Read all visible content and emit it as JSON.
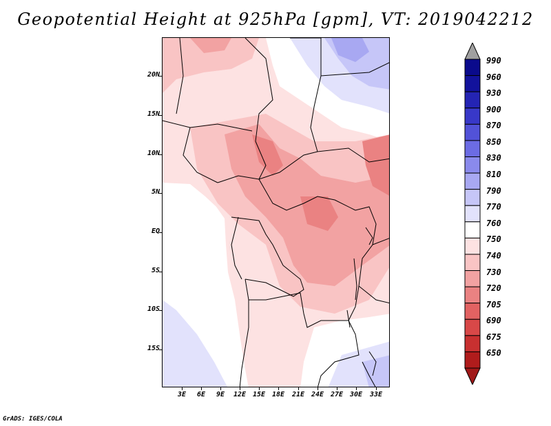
{
  "title": "Geopotential Height at 925hPa [gpm], VT: 2019042212",
  "credit": "GrADS: IGES/COLA",
  "map": {
    "variable": "Geopotential Height",
    "level": "925hPa",
    "units": "gpm",
    "valid_time": "2019042212",
    "lat_ticks": [
      {
        "value": 20,
        "label": "20N"
      },
      {
        "value": 15,
        "label": "15N"
      },
      {
        "value": 10,
        "label": "10N"
      },
      {
        "value": 5,
        "label": "5N"
      },
      {
        "value": 0,
        "label": "EQ"
      },
      {
        "value": -5,
        "label": "5S"
      },
      {
        "value": -10,
        "label": "10S"
      },
      {
        "value": -15,
        "label": "15S"
      }
    ],
    "lon_ticks": [
      {
        "value": 3,
        "label": "3E"
      },
      {
        "value": 6,
        "label": "6E"
      },
      {
        "value": 9,
        "label": "9E"
      },
      {
        "value": 12,
        "label": "12E"
      },
      {
        "value": 15,
        "label": "15E"
      },
      {
        "value": 18,
        "label": "18E"
      },
      {
        "value": 21,
        "label": "21E"
      },
      {
        "value": 24,
        "label": "24E"
      },
      {
        "value": 27,
        "label": "27E"
      },
      {
        "value": 30,
        "label": "30E"
      },
      {
        "value": 33,
        "label": "33E"
      }
    ]
  },
  "colorbar": {
    "levels": [
      {
        "label": "990",
        "color": "#0a0a8c"
      },
      {
        "label": "960",
        "color": "#12129c"
      },
      {
        "label": "930",
        "color": "#2424b4"
      },
      {
        "label": "900",
        "color": "#3838c8"
      },
      {
        "label": "870",
        "color": "#5252d8"
      },
      {
        "label": "850",
        "color": "#6c6ce4"
      },
      {
        "label": "830",
        "color": "#8a8aec"
      },
      {
        "label": "810",
        "color": "#a8a8f2"
      },
      {
        "label": "790",
        "color": "#c6c6f8"
      },
      {
        "label": "770",
        "color": "#e2e2fc"
      },
      {
        "label": "760",
        "color": "#ffffff"
      },
      {
        "label": "750",
        "color": "#fde2e2"
      },
      {
        "label": "740",
        "color": "#f9c4c4"
      },
      {
        "label": "730",
        "color": "#f2a2a2"
      },
      {
        "label": "720",
        "color": "#ea8282"
      },
      {
        "label": "705",
        "color": "#e26262"
      },
      {
        "label": "690",
        "color": "#d84848"
      },
      {
        "label": "675",
        "color": "#c83030"
      },
      {
        "label": "650",
        "color": "#b01c1c"
      }
    ],
    "over_color": "#a0a0a0",
    "under_color": "#a01818"
  }
}
